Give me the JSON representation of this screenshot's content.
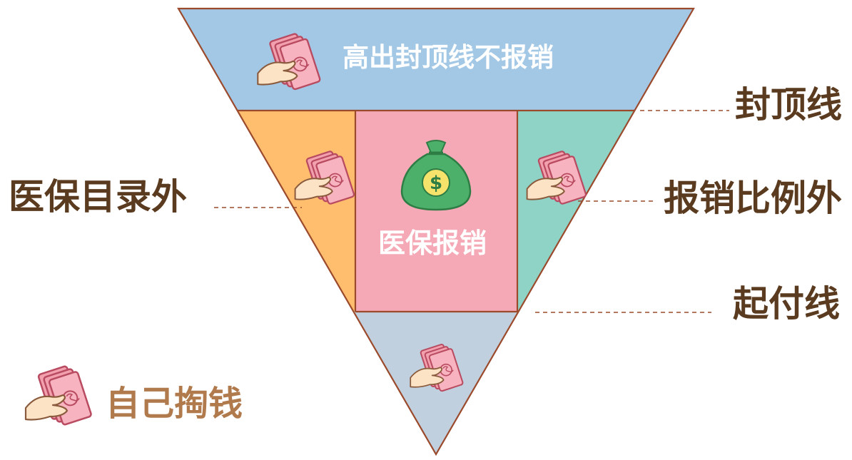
{
  "diagram": {
    "colors": {
      "top": "#a3c8e6",
      "left": "#ffbd6e",
      "center": "#f5a9b6",
      "right": "#8fd3c7",
      "bottom": "#c0d0df",
      "outline": "#9b4a2c",
      "side_text": "#5a3b1f",
      "legend_text": "#b07a4d",
      "bag": "#4caf6a",
      "coin": "#f6e36b",
      "banknote": "#f2a0ad"
    },
    "top_band_label": "高出封顶线不报销",
    "center_label": "医保报销",
    "center_icon": "money-bag-icon",
    "banknote_icon": "hand-holding-cash-icon",
    "side_labels": {
      "cap_line": "封顶线",
      "outside_catalog": "医保目录外",
      "outside_ratio": "报销比例外",
      "deductible": "起付线"
    },
    "legend": {
      "label": "自己掏钱",
      "icon": "hand-holding-cash-icon"
    }
  }
}
